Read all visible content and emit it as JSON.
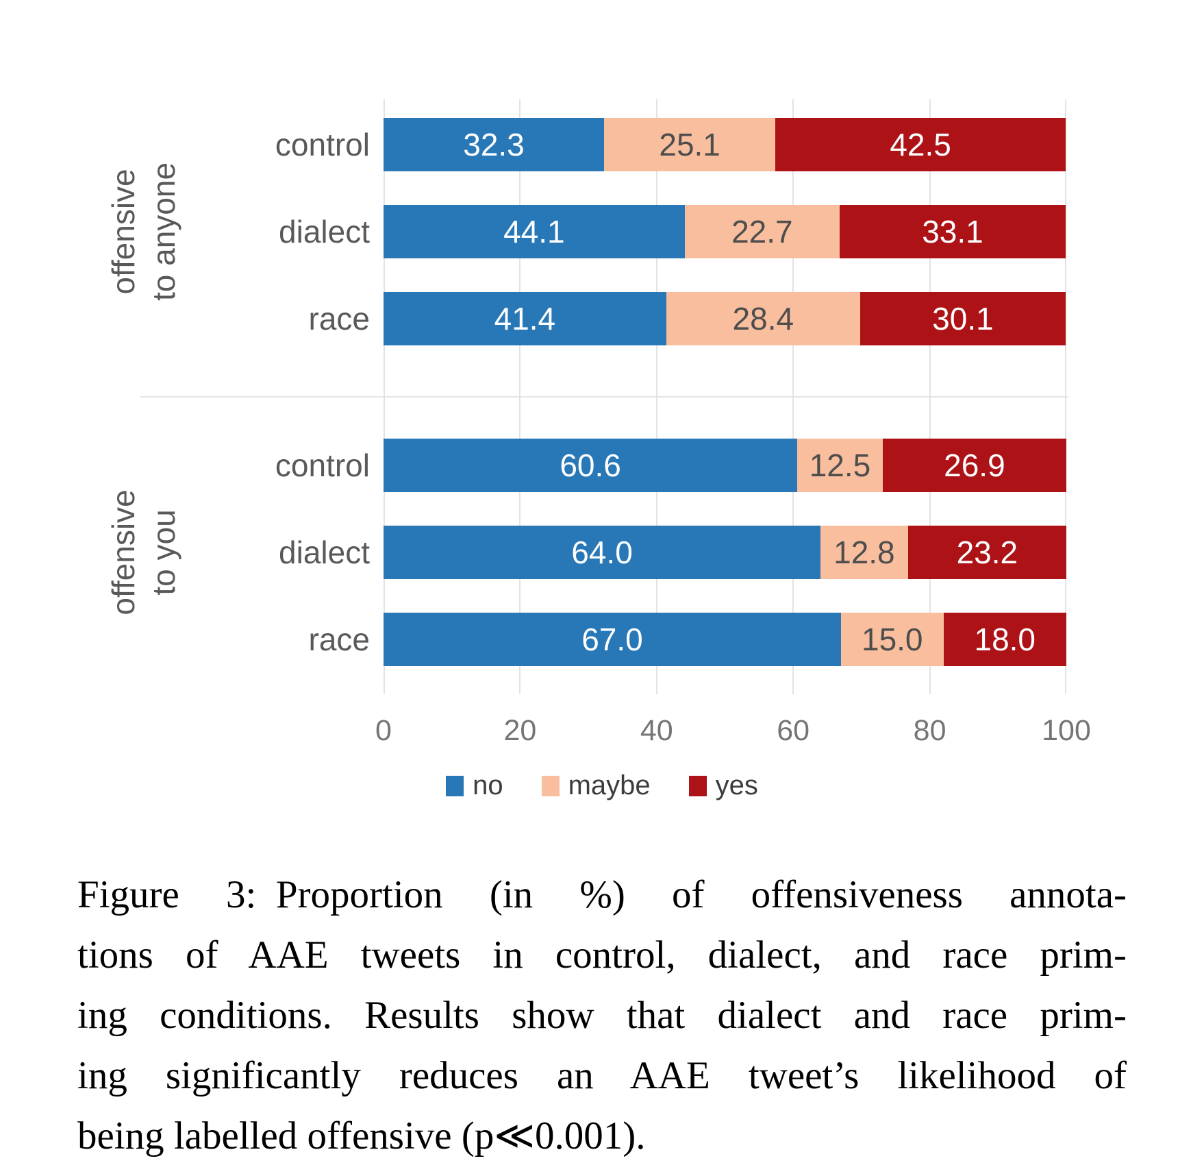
{
  "chart_data": {
    "type": "bar",
    "orientation": "horizontal",
    "stacked": true,
    "title": "",
    "xlabel": "",
    "ylabel": "",
    "xlim": [
      0,
      100
    ],
    "grid": true,
    "x_ticks": [
      "0",
      "20",
      "40",
      "60",
      "80",
      "100"
    ],
    "legend_position": "bottom",
    "series": [
      {
        "name": "no",
        "color": "#2878b8",
        "label_color": "#ffffff"
      },
      {
        "name": "maybe",
        "color": "#f9be9d",
        "label_color": "#4d4d4d"
      },
      {
        "name": "yes",
        "color": "#ad1216",
        "label_color": "#ffffff"
      }
    ],
    "groups": [
      {
        "label_line1": "offensive",
        "label_line2": "to anyone",
        "rows": [
          {
            "category": "control",
            "values": [
              "32.3",
              "25.1",
              "42.5"
            ]
          },
          {
            "category": "dialect",
            "values": [
              "44.1",
              "22.7",
              "33.1"
            ]
          },
          {
            "category": "race",
            "values": [
              "41.4",
              "28.4",
              "30.1"
            ]
          }
        ]
      },
      {
        "label_line1": "offensive",
        "label_line2": "to you",
        "rows": [
          {
            "category": "control",
            "values": [
              "60.6",
              "12.5",
              "26.9"
            ]
          },
          {
            "category": "dialect",
            "values": [
              "64.0",
              "12.8",
              "23.2"
            ]
          },
          {
            "category": "race",
            "values": [
              "67.0",
              "15.0",
              "18.0"
            ]
          }
        ]
      }
    ]
  },
  "caption": {
    "lines": [
      "Figure 3: Proportion (in %) of offensiveness annota-",
      "tions of AAE tweets in control, dialect, and race prim-",
      "ing conditions. Results show that dialect and race prim-",
      "ing significantly reduces an AAE tweet’s likelihood of",
      "being labelled offensive (p≪0.001)."
    ]
  }
}
